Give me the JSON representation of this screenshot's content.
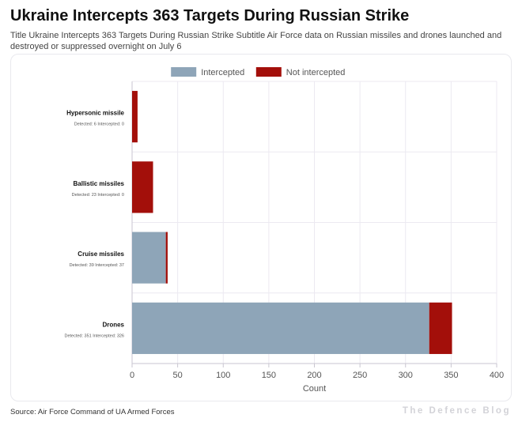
{
  "page": {
    "title": "Ukraine Intercepts 363 Targets During Russian Strike",
    "subtitle": "Title Ukraine Intercepts 363 Targets During Russian Strike Subtitle Air Force data on Russian missiles and drones launched and destroyed or suppressed overnight on July 6",
    "source": "Source: Air Force Command of UA Armed Forces",
    "brand": "The Defence Blog"
  },
  "chart_data": {
    "type": "bar",
    "orientation": "horizontal",
    "stacked": true,
    "categories": [
      "Hypersonic missile",
      "Ballistic missiles",
      "Cruise missiles",
      "Drones"
    ],
    "category_notes": [
      "Detected: 6  Intercepted: 0",
      "Detected: 23  Intercepted: 0",
      "Detected: 39  Intercepted: 37",
      "Detected: 351  Intercepted: 326"
    ],
    "series": [
      {
        "name": "Intercepted",
        "values": [
          0,
          0,
          37,
          326
        ],
        "color": "#8ea5b8"
      },
      {
        "name": "Not intercepted",
        "values": [
          6,
          23,
          2,
          25
        ],
        "color": "#a30f0a"
      }
    ],
    "xlabel": "Count",
    "xlim": [
      0,
      400
    ],
    "xticks": [
      0,
      50,
      100,
      150,
      200,
      250,
      300,
      350,
      400
    ],
    "grid": true,
    "legend_position": "top"
  }
}
